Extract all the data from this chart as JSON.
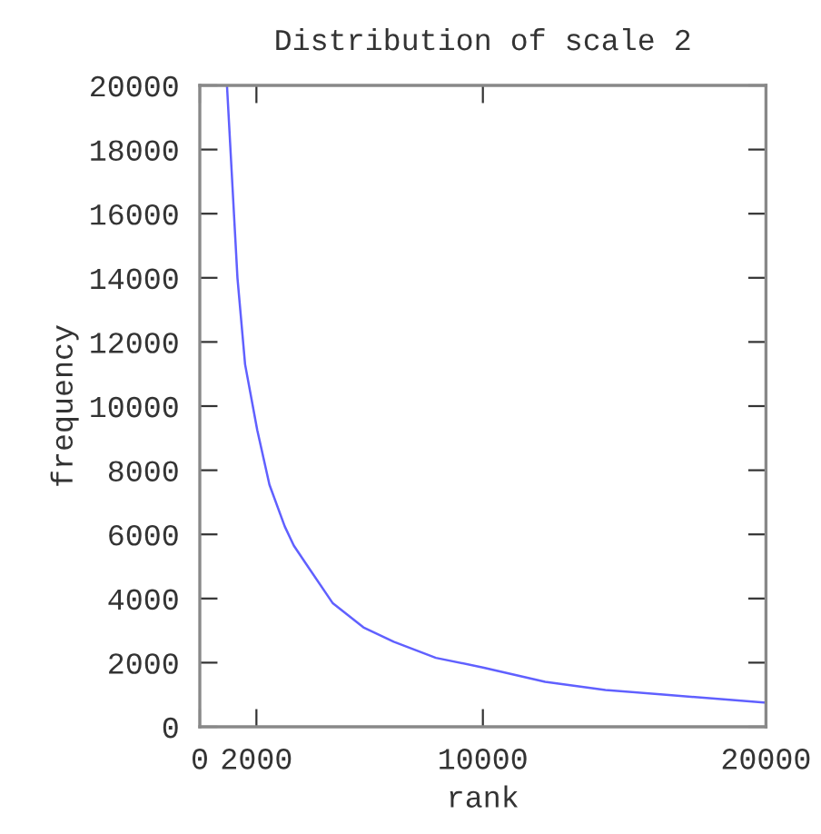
{
  "chart_data": {
    "type": "line",
    "title": "Distribution of scale 2",
    "xlabel": "rank",
    "ylabel": "frequency",
    "x": [
      960,
      1330,
      1600,
      2030,
      2460,
      3000,
      3320,
      3740,
      4700,
      5780,
      6850,
      8340,
      10000,
      12200,
      14330,
      16470,
      18610,
      20000
    ],
    "series": [
      {
        "color": "#6060ff",
        "values": [
          20000,
          14000,
          11300,
          9250,
          7550,
          6250,
          5650,
          5100,
          3850,
          3100,
          2650,
          2150,
          1850,
          1400,
          1150,
          1000,
          850,
          750
        ]
      }
    ],
    "xlim": [
      0,
      20000
    ],
    "xticks": [
      0,
      2000,
      10000,
      20000
    ],
    "ylim": [
      0,
      20000
    ],
    "yticks": [
      0,
      2000,
      4000,
      6000,
      8000,
      10000,
      12000,
      14000,
      16000,
      18000,
      20000
    ],
    "grid": false,
    "legend": false
  }
}
